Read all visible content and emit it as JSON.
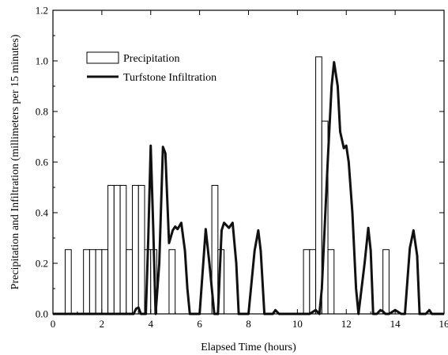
{
  "chart_data": {
    "type": "bar+line",
    "title": "",
    "xlabel": "Elapsed Time (hours)",
    "ylabel": "Precipitation and Infiltration (millimeters per 15 minutes)",
    "xlim": [
      0,
      16
    ],
    "ylim": [
      0,
      1.2
    ],
    "xticks": [
      0,
      2,
      4,
      6,
      8,
      10,
      12,
      14,
      16
    ],
    "yticks": [
      0.0,
      0.2,
      0.4,
      0.6,
      0.8,
      1.0,
      1.2
    ],
    "grid": false,
    "legend_position": "top-left",
    "legend": [
      "Precipitation",
      "Turfstone Infiltration"
    ],
    "bar_width": 0.25,
    "precipitation": {
      "name": "Precipitation",
      "x": [
        0.5,
        1.25,
        1.5,
        1.75,
        2.0,
        2.25,
        2.5,
        2.75,
        3.0,
        3.25,
        3.5,
        3.75,
        4.0,
        4.75,
        6.5,
        6.75,
        10.25,
        10.5,
        10.75,
        11.0,
        11.25,
        13.5
      ],
      "values": [
        0.254,
        0.254,
        0.254,
        0.254,
        0.254,
        0.508,
        0.508,
        0.508,
        0.254,
        0.508,
        0.508,
        0.254,
        0.254,
        0.254,
        0.508,
        0.254,
        0.254,
        0.254,
        1.016,
        0.762,
        0.254,
        0.254
      ]
    },
    "infiltration": {
      "name": "Turfstone Infiltration",
      "x": [
        0,
        3.2,
        3.3,
        3.4,
        3.5,
        3.6,
        3.8,
        3.9,
        4.0,
        4.1,
        4.2,
        4.35,
        4.5,
        4.6,
        4.75,
        4.9,
        5.0,
        5.1,
        5.25,
        5.4,
        5.5,
        5.6,
        5.75,
        6.0,
        6.25,
        6.4,
        6.6,
        6.75,
        6.9,
        7.0,
        7.2,
        7.35,
        7.5,
        7.6,
        7.75,
        8.0,
        8.25,
        8.4,
        8.5,
        8.65,
        8.8,
        9.0,
        9.1,
        9.25,
        9.5,
        10.5,
        10.75,
        10.9,
        11.0,
        11.25,
        11.4,
        11.5,
        11.65,
        11.75,
        11.9,
        12.0,
        12.1,
        12.25,
        12.4,
        12.5,
        12.75,
        12.9,
        13.0,
        13.1,
        13.25,
        13.4,
        13.5,
        13.6,
        13.75,
        14.0,
        14.25,
        14.4,
        14.6,
        14.75,
        14.9,
        15.0,
        15.25,
        15.4,
        15.5,
        15.75,
        16.0
      ],
      "values": [
        0,
        0,
        0,
        0.02,
        0.025,
        0,
        0,
        0.3,
        0.665,
        0.35,
        0,
        0.2,
        0.66,
        0.635,
        0.28,
        0.33,
        0.345,
        0.335,
        0.36,
        0.25,
        0.1,
        0,
        0,
        0,
        0.335,
        0.2,
        0,
        0,
        0.33,
        0.36,
        0.34,
        0.36,
        0.2,
        0,
        0,
        0,
        0.25,
        0.33,
        0.25,
        0,
        0,
        0,
        0.015,
        0,
        0,
        0,
        0.015,
        0,
        0.1,
        0.62,
        0.9,
        0.995,
        0.9,
        0.72,
        0.655,
        0.665,
        0.6,
        0.4,
        0.1,
        0,
        0.2,
        0.34,
        0.25,
        0,
        0,
        0.015,
        0.01,
        0,
        0,
        0.015,
        0,
        0,
        0.26,
        0.33,
        0.23,
        0,
        0,
        0.015,
        0,
        0,
        0
      ]
    }
  }
}
